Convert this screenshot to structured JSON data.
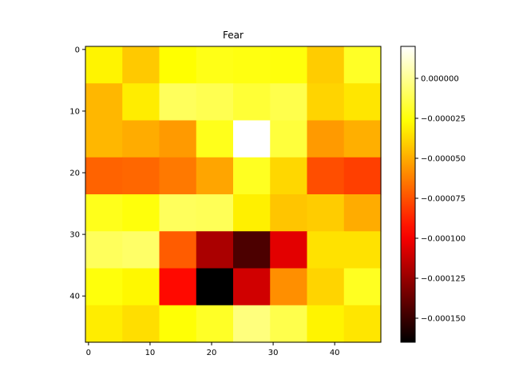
{
  "chart_data": {
    "type": "heatmap",
    "title": "Fear",
    "colormap": "hot",
    "xlabel": "",
    "ylabel": "",
    "rows": 8,
    "cols": 8,
    "cell_size": 6,
    "xlim": [
      -0.5,
      47.5
    ],
    "ylim": [
      47.5,
      -0.5
    ],
    "xticks": [
      "0",
      "10",
      "20",
      "30",
      "40"
    ],
    "yticks": [
      "0",
      "10",
      "20",
      "30",
      "40"
    ],
    "colorbar": {
      "min": -0.000165,
      "max": 2e-05,
      "ticks": [
        "0.000000",
        "−0.000025",
        "−0.000050",
        "−0.000075",
        "−0.000100",
        "−0.000125",
        "−0.000150"
      ],
      "tick_values": [
        0,
        -2.5e-05,
        -5e-05,
        -7.5e-05,
        -0.0001,
        -0.000125,
        -0.00015
      ]
    },
    "values": [
      [
        -3e-05,
        -4.2e-05,
        -2.7e-05,
        -2.3e-05,
        -2.4e-05,
        -2.5e-05,
        -4.1e-05,
        -2e-05
      ],
      [
        -4.7e-05,
        -3.2e-05,
        -1e-05,
        -1.2e-05,
        -1.7e-05,
        -1.3e-05,
        -3.9e-05,
        -3.4e-05
      ],
      [
        -4.7e-05,
        -5e-05,
        -5.5e-05,
        -2.2e-05,
        2e-05,
        -1.6e-05,
        -5.5e-05,
        -4.9e-05
      ],
      [
        -7e-05,
        -6.9e-05,
        -6.4e-05,
        -5.2e-05,
        -2.1e-05,
        -3.8e-05,
        -7.6e-05,
        -8e-05
      ],
      [
        -2.2e-05,
        -2.5e-05,
        -1e-05,
        -1.1e-05,
        -3.1e-05,
        -4.3e-05,
        -4.1e-05,
        -5e-05
      ],
      [
        -1e-05,
        -8e-06,
        -7.2e-05,
        -0.00012,
        -0.000145,
        -0.000105,
        -3.5e-05,
        -3.5e-05
      ],
      [
        -2.5e-05,
        -2.9e-05,
        -9.5e-05,
        -0.000165,
        -0.00011,
        -5.8e-05,
        -3.9e-05,
        -2.1e-05
      ],
      [
        -3.2e-05,
        -3.6e-05,
        -2.6e-05,
        -2e-05,
        -4e-06,
        -1.3e-05,
        -3e-05,
        -3.4e-05
      ]
    ]
  }
}
